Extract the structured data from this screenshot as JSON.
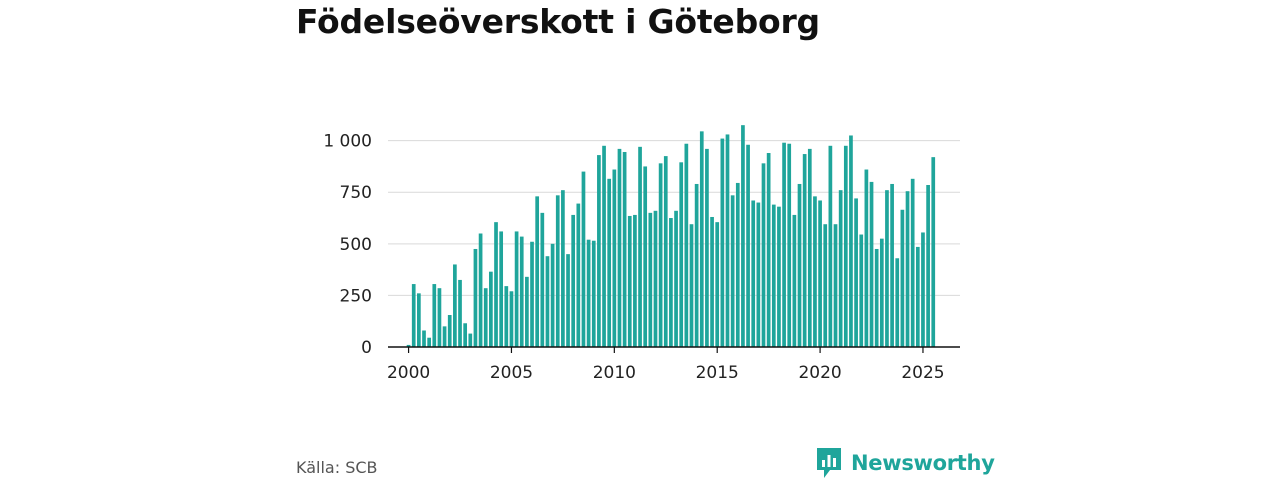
{
  "chart_data": {
    "type": "bar",
    "title": "Födelseöverskott i Göteborg",
    "xlabel": "",
    "ylabel": "",
    "x_start": 2000.0,
    "x_step": 0.25,
    "xlim": [
      1999.0,
      2026.8
    ],
    "xticks": [
      2000,
      2005,
      2010,
      2015,
      2020,
      2025
    ],
    "xtick_labels": [
      "2000",
      "2005",
      "2010",
      "2015",
      "2020",
      "2025"
    ],
    "ylim": [
      0,
      1100
    ],
    "yticks": [
      0,
      250,
      500,
      750,
      1000
    ],
    "ytick_labels": [
      "0",
      "250",
      "500",
      "750",
      "1 000"
    ],
    "grid": true,
    "color": "#1fa59b",
    "values": [
      10,
      305,
      260,
      80,
      45,
      305,
      285,
      100,
      155,
      400,
      325,
      115,
      65,
      475,
      550,
      285,
      365,
      605,
      560,
      295,
      270,
      560,
      535,
      340,
      510,
      730,
      650,
      440,
      500,
      735,
      760,
      450,
      640,
      695,
      850,
      520,
      515,
      930,
      975,
      815,
      860,
      960,
      945,
      635,
      640,
      970,
      875,
      650,
      660,
      890,
      925,
      625,
      660,
      895,
      985,
      595,
      790,
      1045,
      960,
      630,
      605,
      1010,
      1030,
      735,
      795,
      1075,
      980,
      710,
      700,
      890,
      940,
      690,
      680,
      990,
      985,
      640,
      790,
      935,
      960,
      730,
      710,
      595,
      975,
      595,
      760,
      975,
      1025,
      720,
      545,
      860,
      800,
      475,
      525,
      760,
      790,
      430,
      665,
      755,
      815,
      485,
      555,
      785,
      920
    ]
  },
  "source": "Källa: SCB",
  "brand": {
    "name": "Newsworthy",
    "color": "#1fa59b",
    "icon": "bar-chart-speech-bubble-icon"
  }
}
